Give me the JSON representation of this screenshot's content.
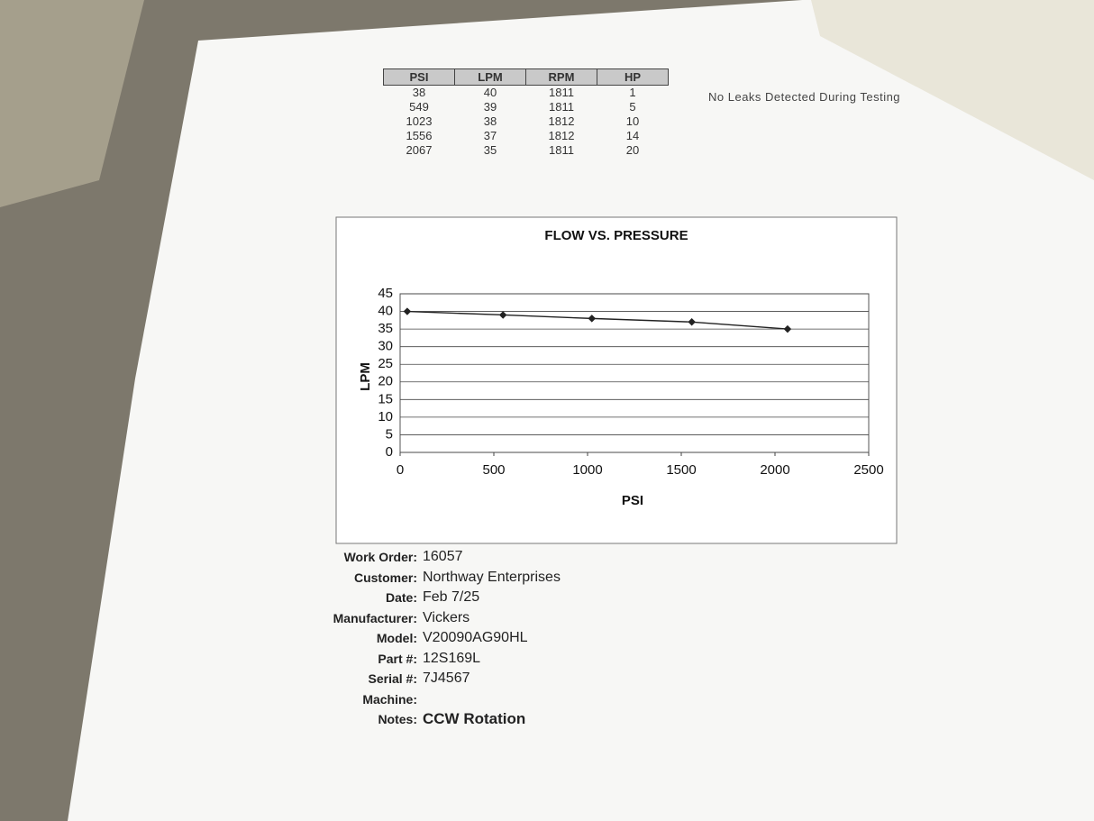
{
  "table": {
    "header": [
      "PSI",
      "LPM",
      "RPM",
      "HP"
    ],
    "rows": [
      [
        38,
        40,
        1811,
        1
      ],
      [
        549,
        39,
        1811,
        5
      ],
      [
        1023,
        38,
        1812,
        10
      ],
      [
        1556,
        37,
        1812,
        14
      ],
      [
        2067,
        35,
        1811,
        20
      ]
    ]
  },
  "note": "No Leaks Detected During Testing",
  "chart_data": {
    "type": "line",
    "title": "FLOW VS. PRESSURE",
    "x_label": "PSI",
    "y_label": "LPM",
    "x": [
      38,
      549,
      1023,
      1556,
      2067
    ],
    "values": [
      40,
      39,
      38,
      37,
      35
    ],
    "color": "#222222",
    "xlim": [
      0,
      2500
    ],
    "xticks": [
      0,
      500,
      1000,
      1500,
      2000,
      2500
    ],
    "ylim": [
      0,
      45
    ],
    "yticks": [
      0,
      5,
      10,
      15,
      20,
      25,
      30,
      35,
      40,
      45
    ],
    "grid": true
  },
  "fields": [
    {
      "label": "Work Order:",
      "value": "16057"
    },
    {
      "label": "Customer:",
      "value": "Northway Enterprises"
    },
    {
      "label": "Date:",
      "value": "Feb 7/25"
    },
    {
      "label": "Manufacturer:",
      "value": "Vickers"
    },
    {
      "label": "Model:",
      "value": "V20090AG90HL"
    },
    {
      "label": "Part #:",
      "value": "12S169L"
    },
    {
      "label": "Serial #:",
      "value": "7J4567"
    },
    {
      "label": "Machine:"
    },
    {
      "label": "Notes:",
      "value": "CCW Rotation"
    }
  ]
}
